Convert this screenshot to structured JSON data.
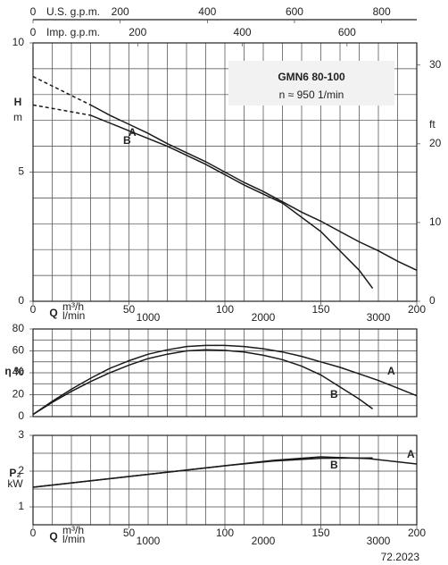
{
  "chart_data": [
    {
      "type": "line",
      "title": "GMN6 80-100",
      "subtitle": "n ≈ 950 1/min",
      "x_label": "Q",
      "x_unit": "m³/h",
      "xlim": [
        0,
        200
      ],
      "xticks": [
        0,
        50,
        100,
        150,
        200
      ],
      "y_label": "H",
      "y_unit": "m",
      "ylim": [
        0,
        10
      ],
      "yticks": [
        0,
        5,
        10
      ],
      "y2_label": "ft",
      "y2lim": [
        0,
        32.81
      ],
      "y2ticks": [
        0,
        10,
        20,
        30
      ],
      "minor_grid": {
        "x": 10,
        "y": 1
      },
      "extra_x_axes": [
        {
          "label": "l/min",
          "position": "bottom",
          "lim": [
            0,
            3333.3
          ],
          "ticks": [
            1000,
            2000,
            3000
          ]
        },
        {
          "label": "U.S. g.p.m.",
          "position": "top",
          "lim": [
            0,
            880.6
          ],
          "ticks": [
            0,
            200,
            400,
            600,
            800
          ]
        },
        {
          "label": "Imp. g.p.m.",
          "position": "top",
          "lim": [
            0,
            733.3
          ],
          "ticks": [
            0,
            200,
            400,
            600
          ]
        }
      ],
      "series": [
        {
          "name": "A",
          "style": "dashed",
          "x": [
            0,
            30
          ],
          "values": [
            8.7,
            7.6
          ]
        },
        {
          "name": "A",
          "style": "solid",
          "x": [
            30,
            40,
            50,
            60,
            70,
            80,
            90,
            100,
            110,
            120,
            130,
            140,
            150,
            160,
            170,
            180,
            190,
            200
          ],
          "values": [
            7.6,
            7.2,
            6.85,
            6.5,
            6.1,
            5.75,
            5.4,
            5.0,
            4.6,
            4.25,
            3.85,
            3.45,
            3.1,
            2.7,
            2.3,
            1.95,
            1.55,
            1.2
          ]
        },
        {
          "name": "B",
          "style": "dashed",
          "x": [
            0,
            30
          ],
          "values": [
            7.6,
            7.2
          ]
        },
        {
          "name": "B",
          "style": "solid",
          "x": [
            30,
            50,
            70,
            90,
            110,
            130,
            150,
            170,
            177
          ],
          "values": [
            7.2,
            6.6,
            6.0,
            5.3,
            4.5,
            3.8,
            2.7,
            1.2,
            0.5
          ]
        }
      ]
    },
    {
      "type": "line",
      "y_label": "η %",
      "xlim": [
        0,
        200
      ],
      "ylim": [
        0,
        80
      ],
      "yticks": [
        0,
        20,
        40,
        60,
        80
      ],
      "minor_grid": {
        "x": 10,
        "y": 10
      },
      "series": [
        {
          "name": "A",
          "style": "solid",
          "x": [
            0,
            10,
            20,
            30,
            40,
            50,
            60,
            70,
            80,
            90,
            100,
            110,
            120,
            130,
            140,
            150,
            160,
            170,
            180,
            190,
            200
          ],
          "values": [
            2,
            14,
            25,
            35,
            44,
            51,
            57,
            61,
            64,
            65,
            65,
            64,
            62,
            59,
            55,
            50,
            45,
            39,
            33,
            26,
            19
          ]
        },
        {
          "name": "B",
          "style": "solid",
          "x": [
            0,
            10,
            20,
            30,
            40,
            50,
            60,
            70,
            80,
            90,
            100,
            110,
            120,
            130,
            140,
            150,
            160,
            170,
            177
          ],
          "values": [
            2,
            13,
            23,
            32,
            40,
            47,
            53,
            57,
            60,
            61,
            60.5,
            59,
            56,
            52,
            46,
            38,
            27,
            16,
            7
          ]
        }
      ]
    },
    {
      "type": "line",
      "y_label": "P₂",
      "y_unit": "kW",
      "x_label": "Q",
      "x_unit": "m³/h",
      "xlim": [
        0,
        200
      ],
      "xticks": [
        0,
        50,
        100,
        150,
        200
      ],
      "ylim": [
        0.5,
        3
      ],
      "yticks": [
        1,
        2,
        3
      ],
      "minor_grid": {
        "x": 10,
        "y": 0.5
      },
      "extra_x_axes": [
        {
          "label": "l/min",
          "position": "bottom",
          "lim": [
            0,
            3333.3
          ],
          "ticks": [
            1000,
            2000,
            3000
          ]
        }
      ],
      "series": [
        {
          "name": "A",
          "style": "solid",
          "x": [
            0,
            25,
            50,
            75,
            100,
            125,
            150,
            175,
            200
          ],
          "values": [
            1.55,
            1.7,
            1.85,
            2.0,
            2.15,
            2.3,
            2.4,
            2.35,
            2.2
          ]
        },
        {
          "name": "B",
          "style": "solid",
          "x": [
            0,
            25,
            50,
            75,
            100,
            125,
            150,
            177
          ],
          "values": [
            1.55,
            1.7,
            1.85,
            2.0,
            2.15,
            2.28,
            2.36,
            2.37
          ]
        }
      ],
      "footer_code": "72.2023"
    }
  ]
}
